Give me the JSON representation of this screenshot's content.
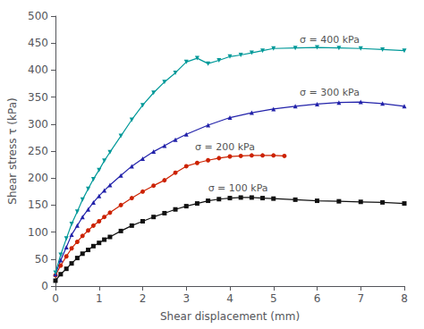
{
  "chart_data": {
    "type": "line",
    "xlabel": "Shear displacement (mm)",
    "ylabel": "Shear stress τ (kPa)",
    "xlim": [
      0,
      8
    ],
    "ylim": [
      0,
      500
    ],
    "xticks": [
      0,
      1,
      2,
      3,
      4,
      5,
      6,
      7,
      8
    ],
    "yticks": [
      0,
      50,
      100,
      150,
      200,
      250,
      300,
      350,
      400,
      450,
      500
    ],
    "grid": false,
    "series": [
      {
        "name": "σ = 100 kPa",
        "color": "#111111",
        "marker": "square",
        "x": [
          0.0,
          0.12,
          0.25,
          0.37,
          0.5,
          0.62,
          0.75,
          0.87,
          1.0,
          1.12,
          1.25,
          1.5,
          1.75,
          2.0,
          2.25,
          2.5,
          2.75,
          3.0,
          3.25,
          3.5,
          3.75,
          4.0,
          4.25,
          4.5,
          4.75,
          5.0,
          5.5,
          6.0,
          6.5,
          7.0,
          7.5,
          8.0
        ],
        "values": [
          10,
          22,
          32,
          42,
          52,
          60,
          67,
          74,
          80,
          86,
          91,
          102,
          112,
          120,
          128,
          135,
          142,
          148,
          153,
          158,
          161,
          163,
          164,
          164,
          163,
          162,
          160,
          158,
          157,
          156,
          155,
          153
        ]
      },
      {
        "name": "σ = 200 kPa",
        "color": "#cc2200",
        "marker": "circle",
        "x": [
          0.0,
          0.12,
          0.25,
          0.37,
          0.5,
          0.62,
          0.75,
          0.87,
          1.0,
          1.12,
          1.25,
          1.5,
          1.75,
          2.0,
          2.25,
          2.5,
          2.75,
          3.0,
          3.25,
          3.5,
          3.75,
          4.0,
          4.25,
          4.5,
          4.75,
          5.0,
          5.25
        ],
        "values": [
          20,
          38,
          55,
          70,
          82,
          93,
          103,
          112,
          120,
          128,
          136,
          150,
          163,
          175,
          186,
          196,
          210,
          222,
          228,
          233,
          237,
          240,
          241,
          242,
          242,
          242,
          241
        ]
      },
      {
        "name": "σ = 300 kPa",
        "color": "#2222aa",
        "marker": "triangle",
        "x": [
          0.0,
          0.12,
          0.25,
          0.37,
          0.5,
          0.62,
          0.75,
          0.87,
          1.0,
          1.12,
          1.25,
          1.5,
          1.75,
          2.0,
          2.25,
          2.5,
          2.75,
          3.0,
          3.5,
          4.0,
          4.5,
          5.0,
          5.5,
          6.0,
          6.5,
          7.0,
          7.5,
          8.0
        ],
        "values": [
          22,
          48,
          72,
          95,
          112,
          128,
          142,
          155,
          167,
          177,
          187,
          205,
          222,
          236,
          249,
          260,
          271,
          281,
          298,
          312,
          321,
          328,
          333,
          337,
          340,
          341,
          338,
          333
        ]
      },
      {
        "name": "σ = 400 kPa",
        "color": "#009999",
        "marker": "triangle-down",
        "x": [
          0.0,
          0.12,
          0.25,
          0.37,
          0.5,
          0.62,
          0.75,
          0.87,
          1.0,
          1.12,
          1.25,
          1.5,
          1.75,
          2.0,
          2.25,
          2.5,
          2.75,
          3.0,
          3.25,
          3.5,
          3.75,
          4.0,
          4.25,
          4.5,
          4.75,
          5.0,
          5.5,
          6.0,
          6.5,
          7.0,
          7.5,
          8.0
        ],
        "values": [
          25,
          58,
          88,
          115,
          138,
          160,
          180,
          198,
          215,
          232,
          248,
          278,
          308,
          335,
          358,
          378,
          395,
          415,
          422,
          412,
          418,
          425,
          428,
          432,
          436,
          440,
          441,
          442,
          441,
          440,
          438,
          436
        ]
      }
    ],
    "annotations": [
      {
        "text": "σ = 400 kPa",
        "x": 5.6,
        "y": 456
      },
      {
        "text": "σ = 300 kPa",
        "x": 5.6,
        "y": 358
      },
      {
        "text": "σ = 200 kPa",
        "x": 3.2,
        "y": 258
      },
      {
        "text": "σ = 100 kPa",
        "x": 3.5,
        "y": 182
      }
    ]
  }
}
